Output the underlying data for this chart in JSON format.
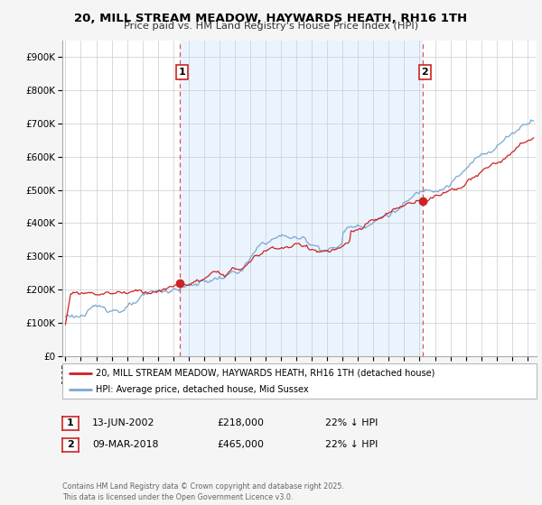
{
  "title": "20, MILL STREAM MEADOW, HAYWARDS HEATH, RH16 1TH",
  "subtitle": "Price paid vs. HM Land Registry's House Price Index (HPI)",
  "legend_line1": "20, MILL STREAM MEADOW, HAYWARDS HEATH, RH16 1TH (detached house)",
  "legend_line2": "HPI: Average price, detached house, Mid Sussex",
  "sale1_date": "13-JUN-2002",
  "sale1_price": "£218,000",
  "sale1_hpi": "22% ↓ HPI",
  "sale2_date": "09-MAR-2018",
  "sale2_price": "£465,000",
  "sale2_hpi": "22% ↓ HPI",
  "footer": "Contains HM Land Registry data © Crown copyright and database right 2025.\nThis data is licensed under the Open Government Licence v3.0.",
  "red_color": "#cc2222",
  "blue_color": "#7aa8d2",
  "blue_shade": "#ddeeff",
  "background": "#f5f5f5",
  "plot_bg": "#ffffff",
  "sale1_x": 2002.44,
  "sale1_y": 218000,
  "sale2_x": 2018.19,
  "sale2_y": 465000,
  "vline1_x": 2002.44,
  "vline2_x": 2018.19,
  "ylim": [
    0,
    950000
  ],
  "xlim": [
    1994.8,
    2025.6
  ]
}
